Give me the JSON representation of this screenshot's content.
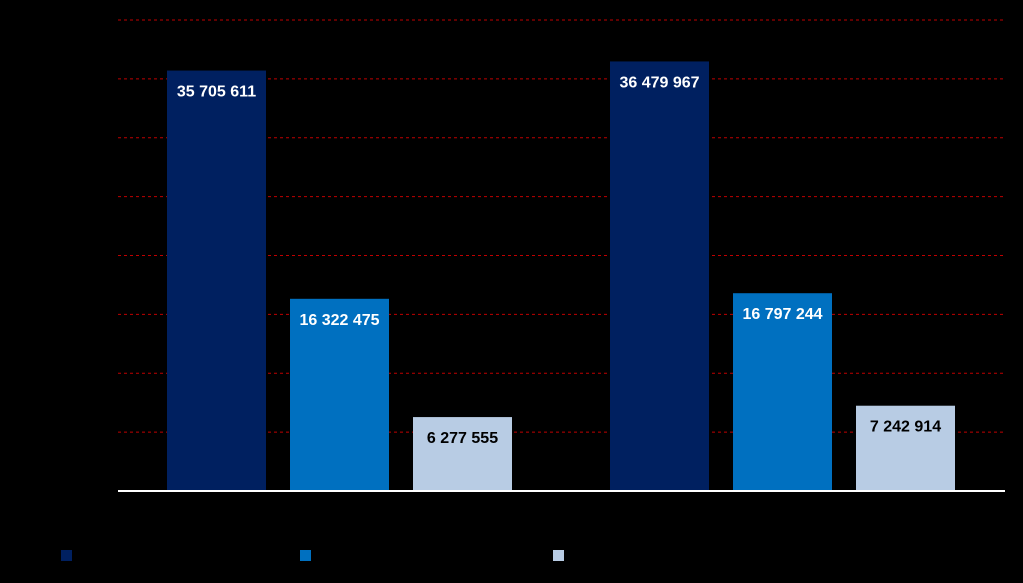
{
  "chart_data": {
    "type": "bar",
    "title": "",
    "xlabel": "",
    "ylabel": "",
    "ylim": [
      0,
      40000000
    ],
    "grid": true,
    "categories": [
      "",
      ""
    ],
    "series": [
      {
        "values": [
          35705611,
          36479967
        ],
        "labels": [
          "35 705 611",
          "36 479 967"
        ],
        "color": "#002060",
        "label_color": "#ffffff"
      },
      {
        "values": [
          16322475,
          16797244
        ],
        "labels": [
          "16 322 475",
          "16 797 244"
        ],
        "color": "#0070c0",
        "label_color": "#ffffff"
      },
      {
        "values": [
          6277555,
          7242914
        ],
        "labels": [
          "6 277 555",
          "7 242 914"
        ],
        "color": "#b8cce4",
        "label_color": "#000000"
      }
    ],
    "legend": {
      "placement": "bottom"
    },
    "colors": {
      "background": "#000000",
      "gridline": "#c00000",
      "axis": "#ffffff"
    }
  }
}
